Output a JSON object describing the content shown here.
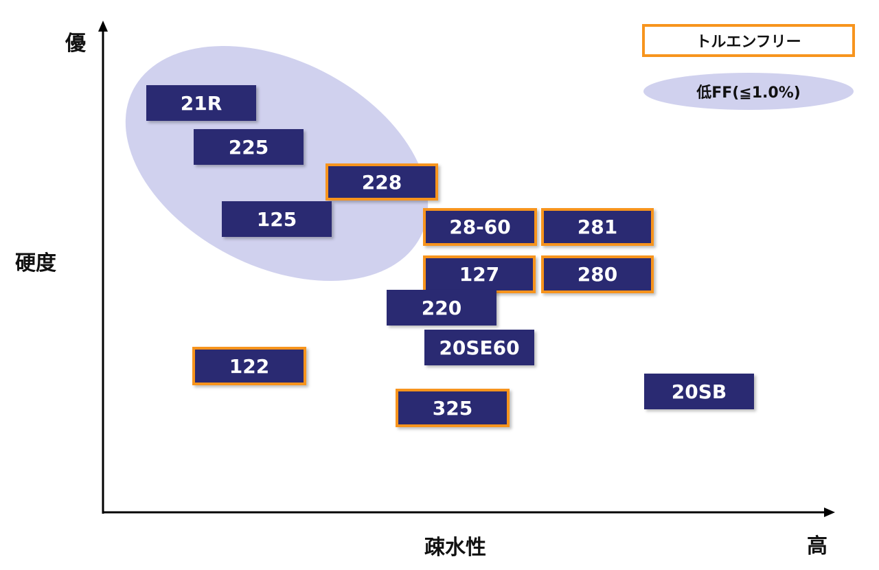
{
  "axis": {
    "y_top": "優",
    "y_label": "硬度",
    "x_label": "疎水性",
    "x_end": "高"
  },
  "legend": {
    "toluene_free": "トルエンフリー",
    "low_ff": "低FF(≦1.0%)"
  },
  "products": [
    {
      "label": "21R",
      "toluene_free": false
    },
    {
      "label": "225",
      "toluene_free": false
    },
    {
      "label": "228",
      "toluene_free": true
    },
    {
      "label": "125",
      "toluene_free": false
    },
    {
      "label": "28-60",
      "toluene_free": true
    },
    {
      "label": "281",
      "toluene_free": true
    },
    {
      "label": "127",
      "toluene_free": true
    },
    {
      "label": "280",
      "toluene_free": true
    },
    {
      "label": "220",
      "toluene_free": false
    },
    {
      "label": "20SE60",
      "toluene_free": false
    },
    {
      "label": "122",
      "toluene_free": true
    },
    {
      "label": "325",
      "toluene_free": true
    },
    {
      "label": "20SB",
      "toluene_free": false
    }
  ],
  "colors": {
    "box_fill": "#2a2a72",
    "toluene_free_border": "#f7941d",
    "low_ff_ellipse": "#d0d1ee"
  }
}
